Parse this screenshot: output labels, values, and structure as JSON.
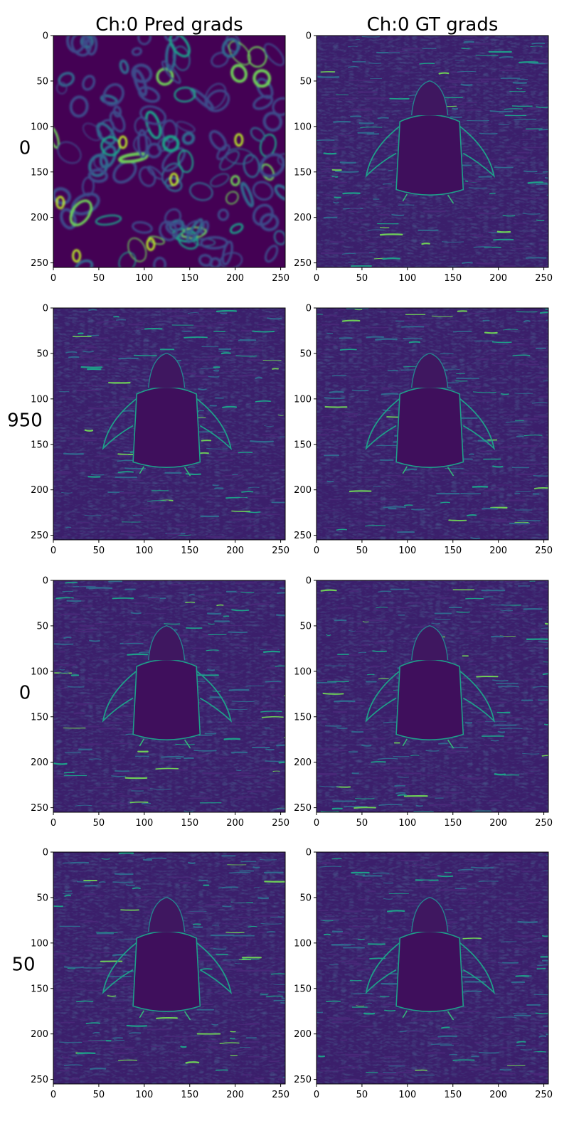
{
  "chart_data": {
    "type": "heatmap",
    "colormap": "viridis",
    "column_titles": [
      "Ch:0 Pred grads",
      "Ch:0 GT grads"
    ],
    "row_labels": [
      "0",
      "950",
      "0",
      "50"
    ],
    "xlim": [
      0,
      255
    ],
    "ylim": [
      255,
      0
    ],
    "x_ticks": [
      0,
      50,
      100,
      150,
      200,
      250
    ],
    "y_ticks": [
      0,
      50,
      100,
      150,
      200,
      250
    ],
    "x_tick_labels": [
      "0",
      "50",
      "100",
      "150",
      "200",
      "250"
    ],
    "y_tick_labels": [
      "0",
      "50",
      "100",
      "150",
      "200",
      "250"
    ],
    "grid": false,
    "panels": [
      {
        "row": 0,
        "col": 0,
        "content": "random-blobs"
      },
      {
        "row": 0,
        "col": 1,
        "content": "penguin-edges"
      },
      {
        "row": 1,
        "col": 0,
        "content": "penguin-edges"
      },
      {
        "row": 1,
        "col": 1,
        "content": "penguin-edges"
      },
      {
        "row": 2,
        "col": 0,
        "content": "penguin-edges"
      },
      {
        "row": 2,
        "col": 1,
        "content": "penguin-edges"
      },
      {
        "row": 3,
        "col": 0,
        "content": "penguin-edges"
      },
      {
        "row": 3,
        "col": 1,
        "content": "penguin-edges"
      }
    ]
  }
}
